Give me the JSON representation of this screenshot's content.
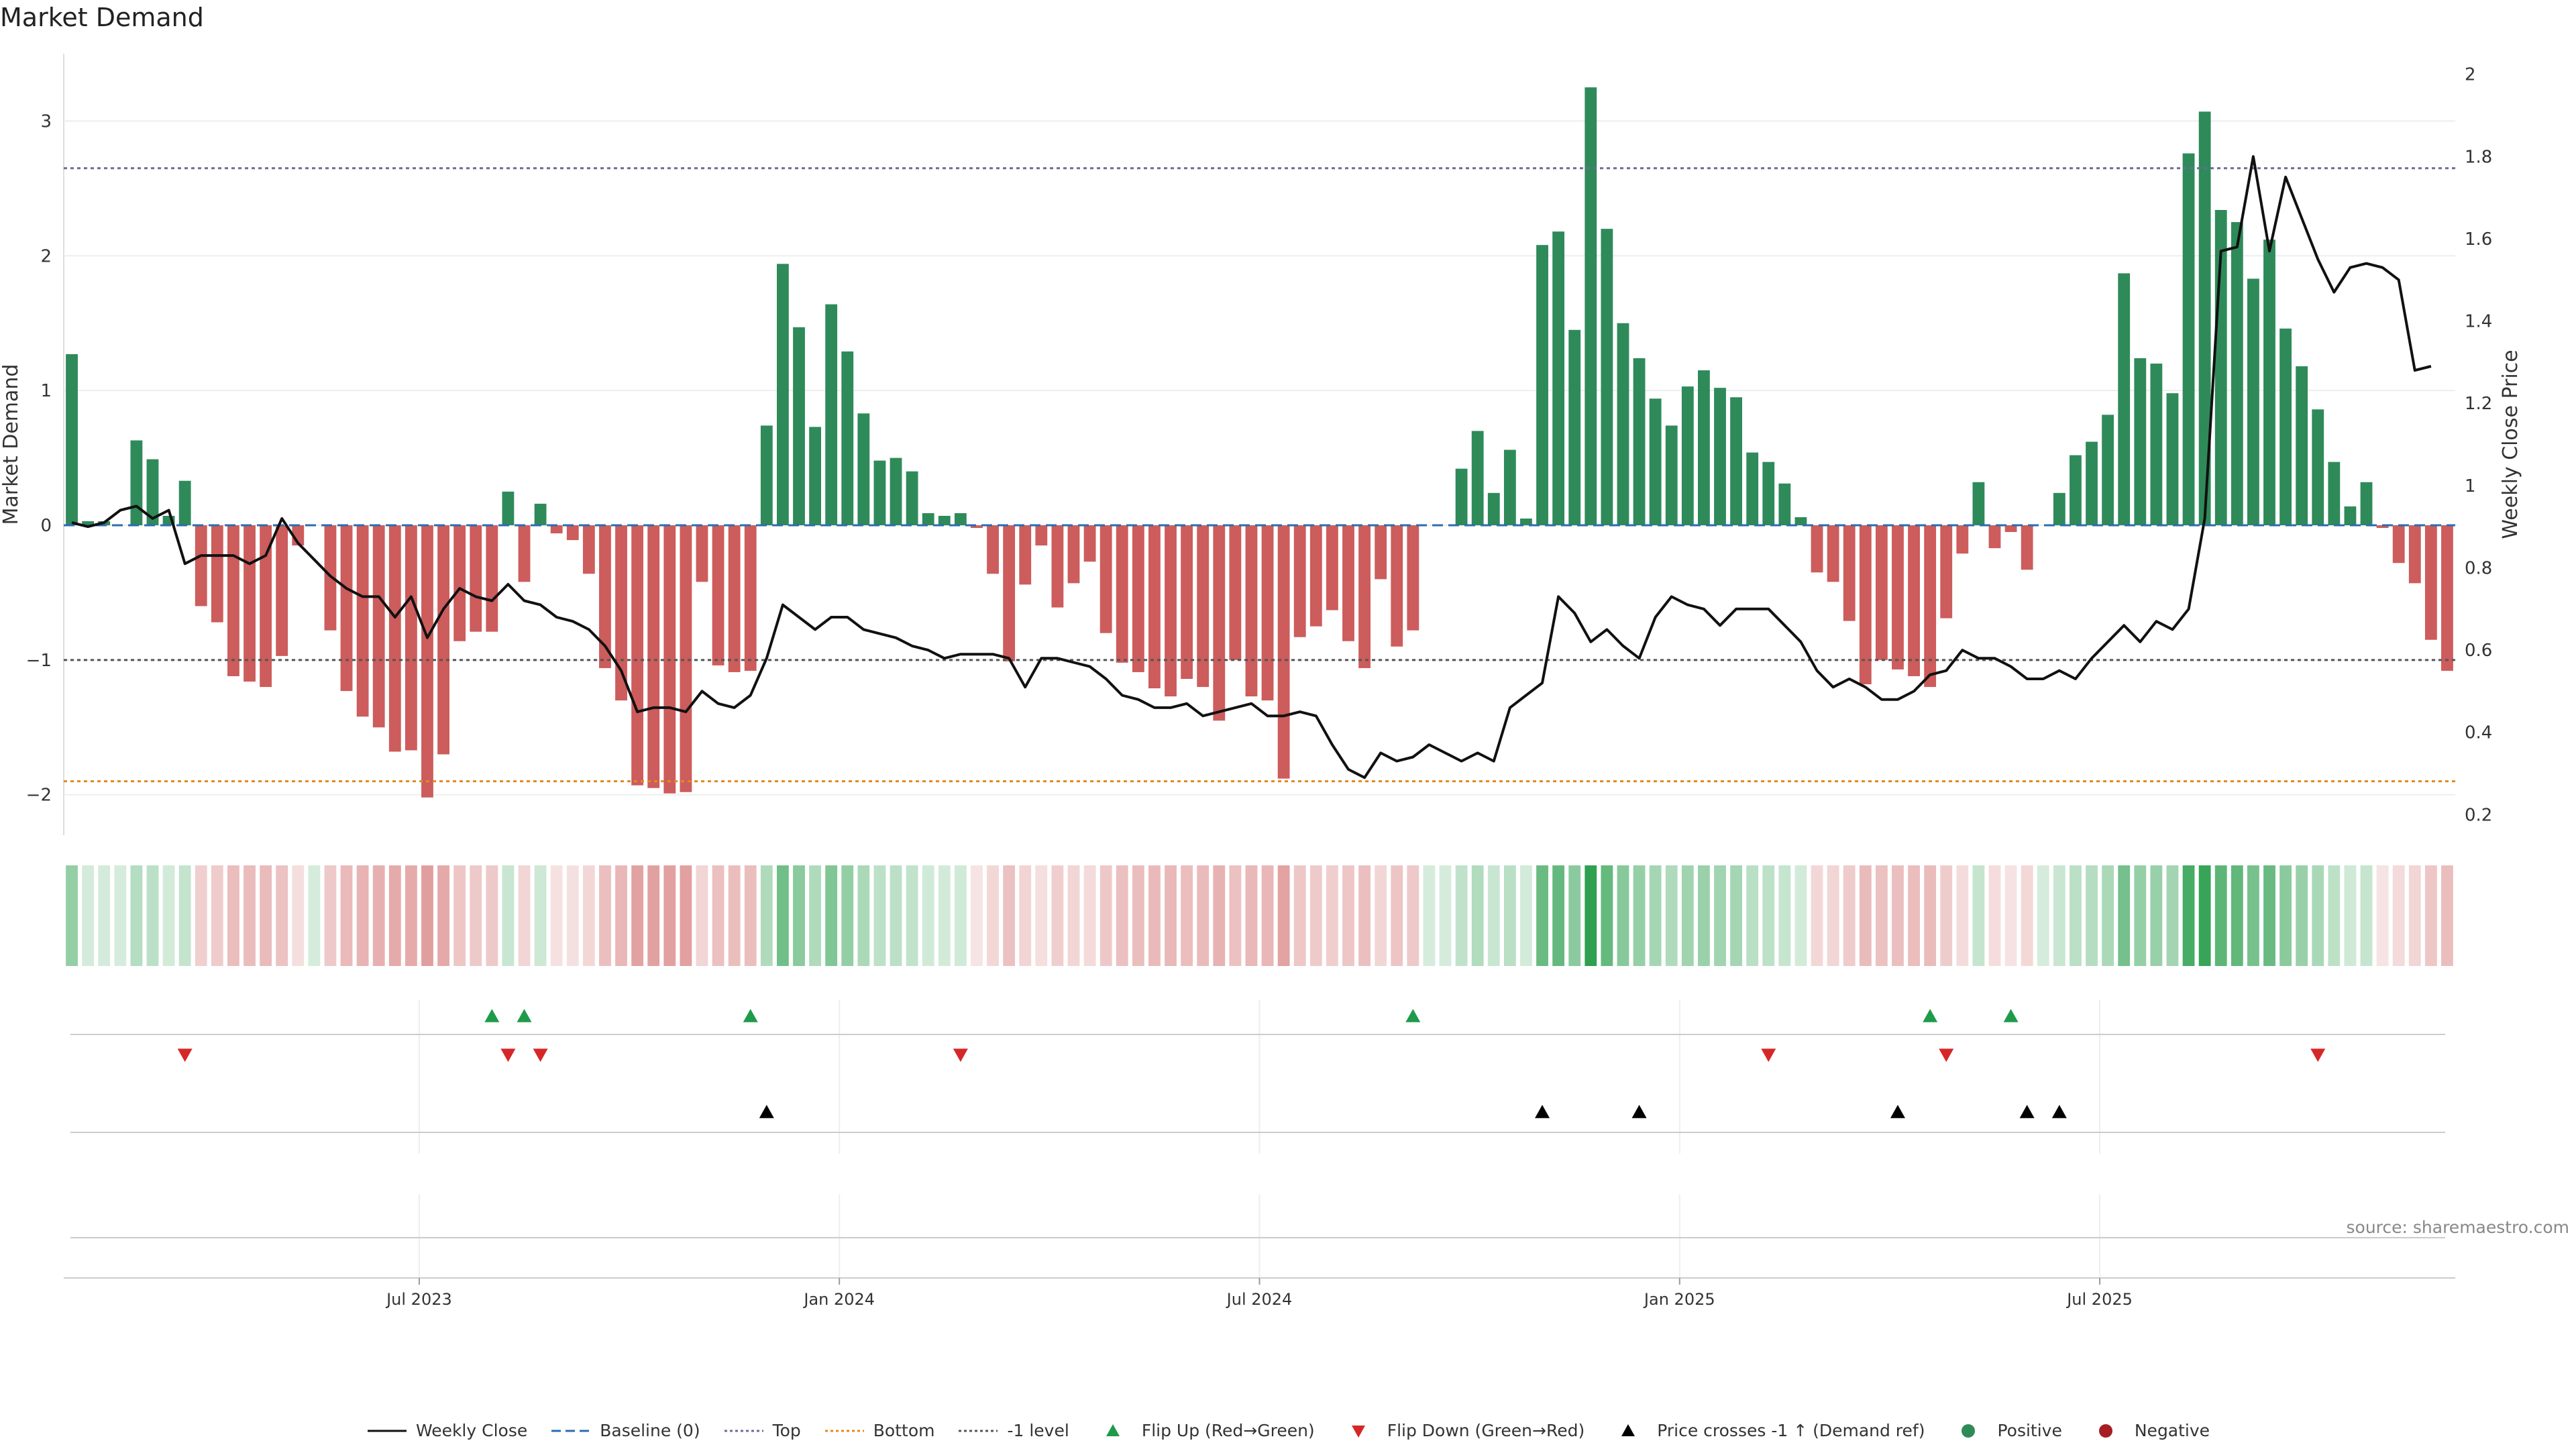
{
  "chart_data": {
    "type": "bar",
    "title": "Market Demand",
    "ylabel": "Market Demand",
    "y2label": "Weekly Close Price",
    "ylim": [
      -2.3,
      3.5
    ],
    "y2lim": [
      0.15,
      2.05
    ],
    "yticks": [
      -2,
      -1,
      0,
      1,
      2,
      3
    ],
    "ytick_labels": [
      "−2",
      "−1",
      "0",
      "1",
      "2",
      "3"
    ],
    "y2ticks": [
      0.2,
      0.4,
      0.6,
      0.8,
      1,
      1.2,
      1.4,
      1.6,
      1.8,
      2
    ],
    "y2tick_labels": [
      "0.2",
      "0.4",
      "0.6",
      "0.8",
      "1",
      "1.2",
      "1.4",
      "1.6",
      "1.8",
      "2"
    ],
    "reference_lines": [
      {
        "name": "Top",
        "value": 2.65,
        "color": "#6b6b9a"
      },
      {
        "name": "Bottom",
        "value": -1.9,
        "color": "#e08a1e"
      },
      {
        "name": "-1 level",
        "value": -1.0,
        "color": "#555555"
      },
      {
        "name": "Baseline (0)",
        "value": 0,
        "color": "#2b6cb0"
      }
    ],
    "date_labels": [
      {
        "label": "Jul 2023",
        "week": 22
      },
      {
        "label": "Jan 2024",
        "week": 48
      },
      {
        "label": "Jul 2024",
        "week": 74
      },
      {
        "label": "Jan 2025",
        "week": 100
      },
      {
        "label": "Jul 2025",
        "week": 126
      }
    ],
    "demand": [
      1.27,
      0.03,
      0.03,
      0,
      0.63,
      0.49,
      0.07,
      0.33,
      -0.6,
      -0.72,
      -1.12,
      -1.16,
      -1.2,
      -0.97,
      -0.15,
      0,
      -0.78,
      -1.23,
      -1.42,
      -1.5,
      -1.68,
      -1.67,
      -2.02,
      -1.7,
      -0.86,
      -0.79,
      -0.79,
      0.25,
      -0.42,
      0.16,
      -0.06,
      -0.11,
      -0.36,
      -1.06,
      -1.3,
      -1.93,
      -1.95,
      -1.99,
      -1.98,
      -0.42,
      -1.04,
      -1.09,
      -1.08,
      0.74,
      1.94,
      1.47,
      0.73,
      1.64,
      1.29,
      0.83,
      0.48,
      0.5,
      0.4,
      0.09,
      0.07,
      0.09,
      -0.02,
      -0.36,
      -1.01,
      -0.44,
      -0.15,
      -0.61,
      -0.43,
      -0.27,
      -0.8,
      -1.02,
      -1.09,
      -1.21,
      -1.27,
      -1.14,
      -1.2,
      -1.45,
      -1.0,
      -1.27,
      -1.3,
      -1.88,
      -0.83,
      -0.75,
      -0.63,
      -0.86,
      -1.06,
      -0.4,
      -0.9,
      -0.78,
      0,
      0,
      0.42,
      0.7,
      0.24,
      0.56,
      0.05,
      2.08,
      2.18,
      1.45,
      3.25,
      2.2,
      1.5,
      1.24,
      0.94,
      0.74,
      1.03,
      1.15,
      1.02,
      0.95,
      0.54,
      0.47,
      0.31,
      0.06,
      -0.35,
      -0.42,
      -0.71,
      -1.18,
      -1.0,
      -1.07,
      -1.12,
      -1.2,
      -0.69,
      -0.21,
      0.32,
      -0.17,
      -0.05,
      -0.33,
      0,
      0.24,
      0.52,
      0.62,
      0.82,
      1.87,
      1.24,
      1.2,
      0.98,
      2.76,
      3.07,
      2.34,
      2.25,
      1.83,
      2.12,
      1.46,
      1.18,
      0.86,
      0.47,
      0.14,
      0.32,
      -0.02,
      -0.28,
      -0.43,
      -0.85,
      -1.08
    ],
    "close": [
      0.91,
      0.9,
      0.91,
      0.94,
      0.95,
      0.92,
      0.94,
      0.81,
      0.83,
      0.83,
      0.83,
      0.81,
      0.83,
      0.92,
      0.86,
      0.82,
      0.78,
      0.75,
      0.73,
      0.73,
      0.68,
      0.73,
      0.63,
      0.7,
      0.75,
      0.73,
      0.72,
      0.76,
      0.72,
      0.71,
      0.68,
      0.67,
      0.65,
      0.61,
      0.55,
      0.45,
      0.46,
      0.46,
      0.45,
      0.5,
      0.47,
      0.46,
      0.49,
      0.58,
      0.71,
      0.68,
      0.65,
      0.68,
      0.68,
      0.65,
      0.64,
      0.63,
      0.61,
      0.6,
      0.58,
      0.59,
      0.59,
      0.59,
      0.58,
      0.51,
      0.58,
      0.58,
      0.57,
      0.56,
      0.53,
      0.49,
      0.48,
      0.46,
      0.46,
      0.47,
      0.44,
      0.45,
      0.46,
      0.47,
      0.44,
      0.44,
      0.45,
      0.44,
      0.37,
      0.31,
      0.29,
      0.35,
      0.33,
      0.34,
      0.37,
      0.35,
      0.33,
      0.35,
      0.33,
      0.46,
      0.49,
      0.52,
      0.73,
      0.69,
      0.62,
      0.65,
      0.61,
      0.58,
      0.68,
      0.73,
      0.71,
      0.7,
      0.66,
      0.7,
      0.7,
      0.7,
      0.66,
      0.62,
      0.55,
      0.51,
      0.53,
      0.51,
      0.48,
      0.48,
      0.5,
      0.54,
      0.55,
      0.6,
      0.58,
      0.58,
      0.56,
      0.53,
      0.53,
      0.55,
      0.53,
      0.58,
      0.62,
      0.66,
      0.62,
      0.67,
      0.65,
      0.7,
      0.92,
      1.57,
      1.58,
      1.8,
      1.57,
      1.75,
      1.65,
      1.55,
      1.47,
      1.53,
      1.54,
      1.53,
      1.5,
      1.28,
      1.29
    ],
    "flip_up_weeks": [
      26,
      28,
      42,
      83,
      115,
      120
    ],
    "flip_down_weeks": [
      7,
      27,
      29,
      55,
      105,
      116,
      139
    ],
    "price_cross_weeks": [
      43,
      91,
      97,
      113,
      121,
      123
    ],
    "legend": [
      {
        "label": "Weekly Close",
        "kind": "line-solid",
        "color": "#111111"
      },
      {
        "label": "Baseline (0)",
        "kind": "line-dash",
        "color": "#2b6cb0"
      },
      {
        "label": "Top",
        "kind": "line-dot",
        "color": "#6b6b9a"
      },
      {
        "label": "Bottom",
        "kind": "line-dot",
        "color": "#e08a1e"
      },
      {
        "label": "-1 level",
        "kind": "line-dot",
        "color": "#555555"
      },
      {
        "label": "Flip Up (Red→Green)",
        "kind": "tri-up",
        "color": "#1e9b4a"
      },
      {
        "label": "Flip Down (Green→Red)",
        "kind": "tri-down",
        "color": "#d62728"
      },
      {
        "label": "Price crosses -1 ↑ (Demand ref)",
        "kind": "tri-up",
        "color": "#000000"
      },
      {
        "label": "Positive",
        "kind": "dot",
        "color": "#2e8b57"
      },
      {
        "label": "Negative",
        "kind": "dot",
        "color": "#a61e22"
      }
    ],
    "colors": {
      "positive": "#2f8a5a",
      "negative": "#cd5c5c",
      "close": "#111111"
    }
  },
  "source": "source: sharemaestro.com"
}
